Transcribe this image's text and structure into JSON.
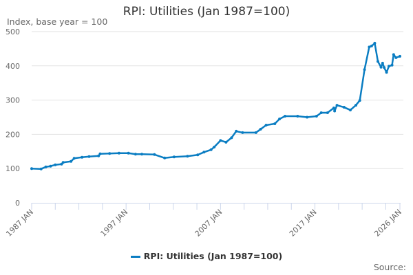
{
  "chart_data": {
    "type": "line",
    "title": "RPI: Utilities (Jan 1987=100)",
    "ylabel": "Index, base year = 100",
    "xlabel": "",
    "ylim": [
      0,
      500
    ],
    "yticks": [
      0,
      100,
      200,
      300,
      400,
      500
    ],
    "xlim": [
      "1987-01",
      "2026-01"
    ],
    "xtick_labels": [
      "1987 JAN",
      "1997 JAN",
      "2007 JAN",
      "2017 JAN",
      "2026 JAN"
    ],
    "grid": "horizontal",
    "legend_position": "bottom",
    "color": "#0a7dc2",
    "source_label": "Source:",
    "series": [
      {
        "name": "RPI: Utilities (Jan 1987=100)",
        "points": [
          [
            "1987-01",
            100
          ],
          [
            "1988-01",
            99
          ],
          [
            "1988-07",
            105
          ],
          [
            "1989-01",
            107
          ],
          [
            "1989-07",
            111
          ],
          [
            "1990-03",
            113
          ],
          [
            "1990-05",
            118
          ],
          [
            "1991-03",
            121
          ],
          [
            "1991-07",
            130
          ],
          [
            "1992-05",
            133
          ],
          [
            "1993-02",
            135
          ],
          [
            "1994-02",
            137
          ],
          [
            "1994-04",
            143
          ],
          [
            "1995-04",
            144
          ],
          [
            "1996-04",
            145
          ],
          [
            "1997-04",
            145
          ],
          [
            "1998-01",
            142
          ],
          [
            "1998-09",
            142
          ],
          [
            "2000-01",
            141
          ],
          [
            "2001-02",
            131
          ],
          [
            "2002-02",
            134
          ],
          [
            "2003-07",
            136
          ],
          [
            "2004-08",
            140
          ],
          [
            "2005-04",
            148
          ],
          [
            "2006-01",
            155
          ],
          [
            "2006-05",
            163
          ],
          [
            "2007-01",
            182
          ],
          [
            "2007-08",
            177
          ],
          [
            "2008-03",
            190
          ],
          [
            "2008-09",
            209
          ],
          [
            "2009-05",
            205
          ],
          [
            "2010-10",
            205
          ],
          [
            "2011-04",
            215
          ],
          [
            "2011-11",
            227
          ],
          [
            "2012-10",
            231
          ],
          [
            "2013-04",
            245
          ],
          [
            "2013-11",
            253
          ],
          [
            "2015-03",
            253
          ],
          [
            "2016-03",
            250
          ],
          [
            "2017-03",
            253
          ],
          [
            "2017-09",
            263
          ],
          [
            "2018-05",
            263
          ],
          [
            "2019-01",
            277
          ],
          [
            "2019-02",
            268
          ],
          [
            "2019-05",
            285
          ],
          [
            "2020-02",
            279
          ],
          [
            "2020-10",
            271
          ],
          [
            "2021-05",
            285
          ],
          [
            "2021-10",
            299
          ],
          [
            "2022-04",
            389
          ],
          [
            "2022-10",
            455
          ],
          [
            "2023-01",
            458
          ],
          [
            "2023-05",
            466
          ],
          [
            "2023-09",
            413
          ],
          [
            "2024-01",
            396
          ],
          [
            "2024-03",
            408
          ],
          [
            "2024-05",
            395
          ],
          [
            "2024-08",
            381
          ],
          [
            "2024-11",
            399
          ],
          [
            "2025-03",
            402
          ],
          [
            "2025-05",
            433
          ],
          [
            "2025-08",
            424
          ],
          [
            "2026-01",
            428
          ]
        ]
      }
    ]
  }
}
